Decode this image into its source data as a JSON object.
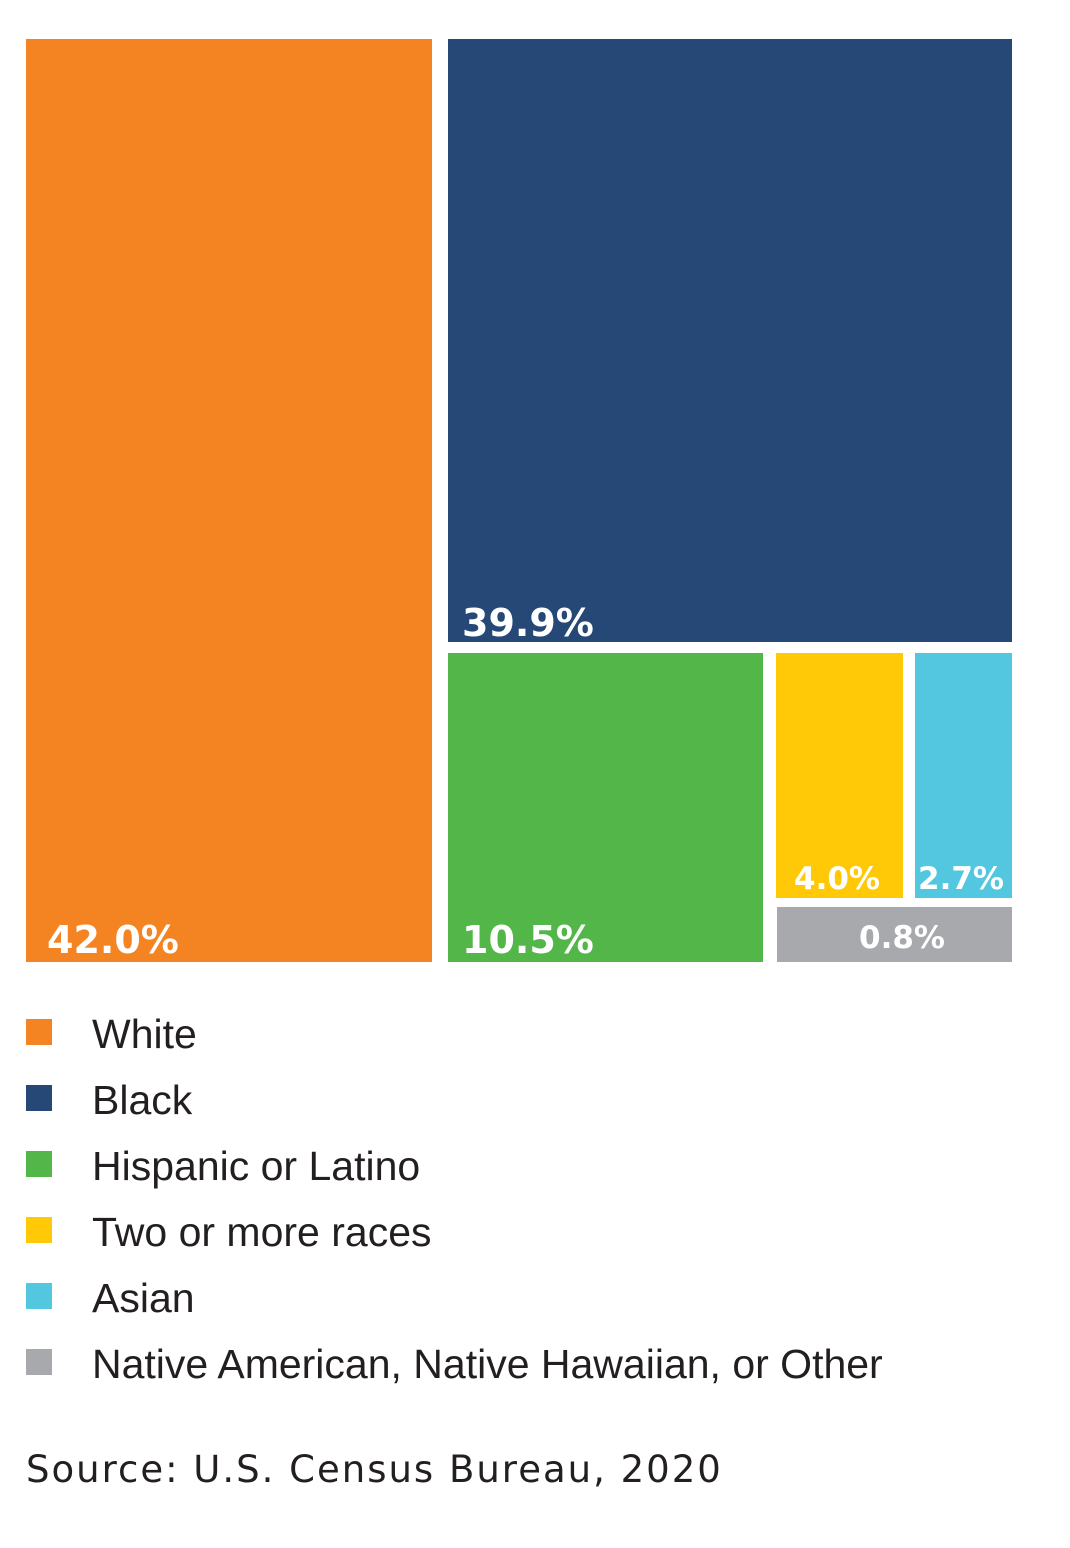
{
  "chart_data": {
    "type": "treemap",
    "title": "",
    "unit": "%",
    "tiles": [
      {
        "name": "White",
        "value": 42.0,
        "label": "42.0%",
        "color": "#f48322"
      },
      {
        "name": "Black",
        "value": 39.9,
        "label": "39.9%",
        "color": "#254877"
      },
      {
        "name": "Hispanic or Latino",
        "value": 10.5,
        "label": "10.5%",
        "color": "#52b648"
      },
      {
        "name": "Two or more races",
        "value": 4.0,
        "label": "4.0%",
        "color": "#ffc908"
      },
      {
        "name": "Asian",
        "value": 2.7,
        "label": "2.7%",
        "color": "#53c6e0"
      },
      {
        "name": "Native American, Native Hawaiian, or Other",
        "value": 0.8,
        "label": "0.8%",
        "color": "#a7a9ac"
      }
    ],
    "legend": [
      {
        "label": "White",
        "color": "#f48322"
      },
      {
        "label": "Black",
        "color": "#254877"
      },
      {
        "label": "Hispanic or Latino",
        "color": "#52b648"
      },
      {
        "label": "Two or more races",
        "color": "#ffc908"
      },
      {
        "label": "Asian",
        "color": "#53c6e0"
      },
      {
        "label": "Native American, Native Hawaiian, or Other",
        "color": "#a7a9ac"
      }
    ],
    "legend_placement": "bottom",
    "source": "Source: U.S. Census Bureau, 2020"
  }
}
